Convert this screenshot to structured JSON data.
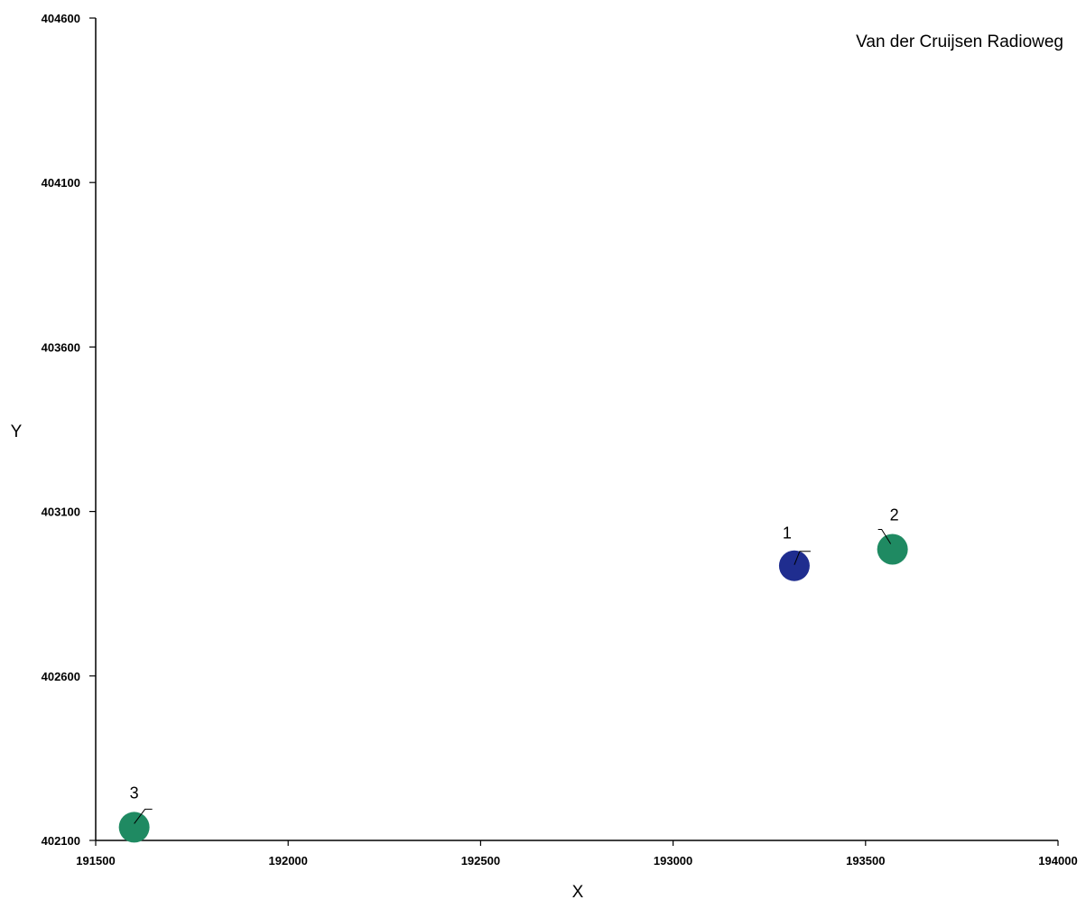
{
  "chart_data": {
    "type": "scatter",
    "title": "Van der Cruijsen  Radioweg",
    "xlabel": "X",
    "ylabel": "Y",
    "xlim": [
      191500,
      194000
    ],
    "ylim": [
      402100,
      404600
    ],
    "x_ticks": [
      191500,
      192000,
      192500,
      193000,
      193500,
      194000
    ],
    "y_ticks": [
      402100,
      402600,
      403100,
      403600,
      404100,
      404600
    ],
    "x_tick_labels": [
      "191500",
      "192000",
      "192500",
      "193000",
      "193500",
      "194000"
    ],
    "y_tick_labels": [
      "402100",
      "402600",
      "403100",
      "403600",
      "404100",
      "404600"
    ],
    "grid": false,
    "legend": "none",
    "colors": {
      "blue": "#1f2d8f",
      "green": "#1f8a62"
    },
    "points": [
      {
        "label": "1",
        "x": 193315,
        "y": 402935,
        "color": "#1f2d8f"
      },
      {
        "label": "2",
        "x": 193570,
        "y": 402985,
        "color": "#1f8a62"
      },
      {
        "label": "3",
        "x": 191600,
        "y": 402140,
        "color": "#1f8a62"
      }
    ]
  }
}
